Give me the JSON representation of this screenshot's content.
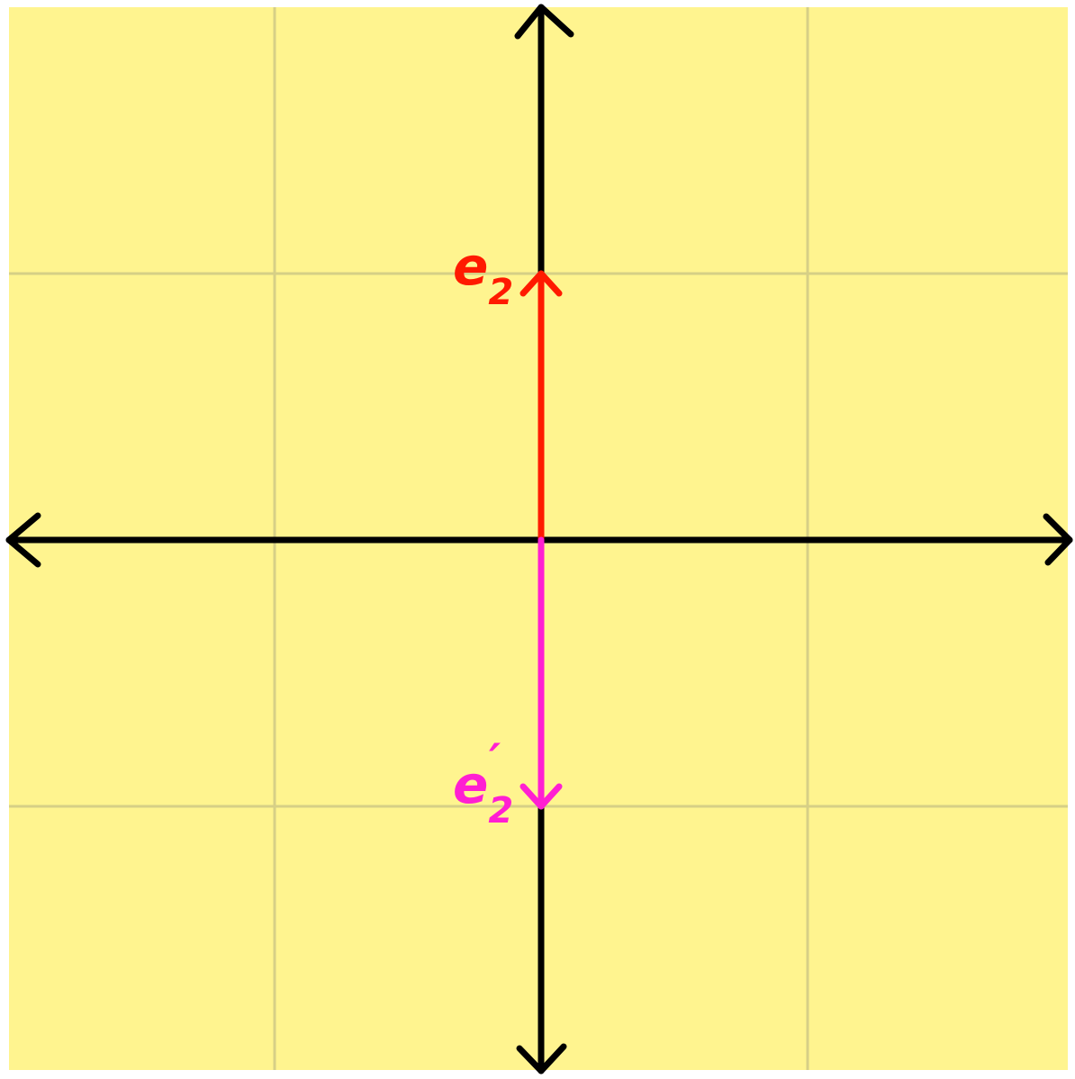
{
  "diagram": {
    "background_color": "#FFF48F",
    "grid_color": "#D6CF86",
    "axis_color": "#000000",
    "grid": true,
    "axis_range": {
      "x": [
        -2,
        2
      ],
      "y": [
        -2,
        2
      ]
    },
    "vectors": [
      {
        "id": "e2",
        "label_base": "e",
        "label_sub": "2",
        "label_prime": "",
        "color": "#FF1A00",
        "from": [
          0,
          0
        ],
        "to": [
          0,
          1
        ]
      },
      {
        "id": "e2-prime",
        "label_base": "e",
        "label_sub": "2",
        "label_prime": "′",
        "color": "#FF1FD2",
        "from": [
          0,
          0
        ],
        "to": [
          0,
          -1
        ]
      }
    ]
  }
}
